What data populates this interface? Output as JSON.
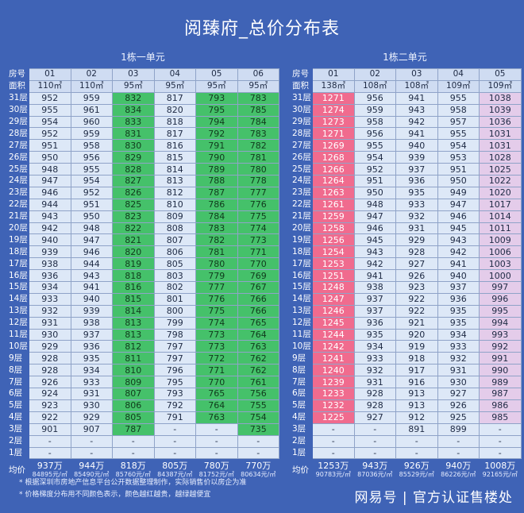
{
  "title": "阅臻府_总价分布表",
  "labels": {
    "room": "房号",
    "area": "面积",
    "avg": "均价"
  },
  "building1": {
    "name": "1栋一单元",
    "units": [
      "01",
      "02",
      "03",
      "04",
      "05",
      "06"
    ],
    "areas": [
      "110㎡",
      "110㎡",
      "95㎡",
      "95㎡",
      "95㎡",
      "95㎡"
    ],
    "col_colors": [
      "l",
      "l",
      "g",
      "l",
      "g",
      "g"
    ],
    "rows": [
      {
        "floor": "31层",
        "vals": [
          "952",
          "959",
          "832",
          "817",
          "793",
          "783"
        ]
      },
      {
        "floor": "30层",
        "vals": [
          "955",
          "961",
          "834",
          "820",
          "795",
          "785"
        ]
      },
      {
        "floor": "29层",
        "vals": [
          "954",
          "960",
          "833",
          "818",
          "794",
          "784"
        ]
      },
      {
        "floor": "28层",
        "vals": [
          "952",
          "959",
          "831",
          "817",
          "792",
          "783"
        ]
      },
      {
        "floor": "27层",
        "vals": [
          "951",
          "958",
          "830",
          "816",
          "791",
          "782"
        ]
      },
      {
        "floor": "26层",
        "vals": [
          "950",
          "956",
          "829",
          "815",
          "790",
          "781"
        ]
      },
      {
        "floor": "25层",
        "vals": [
          "948",
          "955",
          "828",
          "814",
          "789",
          "780"
        ]
      },
      {
        "floor": "24层",
        "vals": [
          "947",
          "954",
          "827",
          "813",
          "788",
          "778"
        ]
      },
      {
        "floor": "23层",
        "vals": [
          "946",
          "952",
          "826",
          "812",
          "787",
          "777"
        ]
      },
      {
        "floor": "22层",
        "vals": [
          "944",
          "951",
          "825",
          "810",
          "786",
          "776"
        ]
      },
      {
        "floor": "21层",
        "vals": [
          "943",
          "950",
          "823",
          "809",
          "784",
          "775"
        ]
      },
      {
        "floor": "20层",
        "vals": [
          "942",
          "948",
          "822",
          "808",
          "783",
          "774"
        ]
      },
      {
        "floor": "19层",
        "vals": [
          "940",
          "947",
          "821",
          "807",
          "782",
          "773"
        ]
      },
      {
        "floor": "18层",
        "vals": [
          "939",
          "946",
          "820",
          "806",
          "781",
          "771"
        ]
      },
      {
        "floor": "17层",
        "vals": [
          "938",
          "944",
          "819",
          "805",
          "780",
          "770"
        ]
      },
      {
        "floor": "16层",
        "vals": [
          "936",
          "943",
          "818",
          "803",
          "779",
          "769"
        ]
      },
      {
        "floor": "15层",
        "vals": [
          "934",
          "941",
          "816",
          "802",
          "777",
          "767"
        ]
      },
      {
        "floor": "14层",
        "vals": [
          "933",
          "940",
          "815",
          "801",
          "776",
          "766"
        ]
      },
      {
        "floor": "13层",
        "vals": [
          "932",
          "939",
          "814",
          "800",
          "775",
          "766"
        ]
      },
      {
        "floor": "12层",
        "vals": [
          "931",
          "938",
          "813",
          "799",
          "774",
          "765"
        ]
      },
      {
        "floor": "11层",
        "vals": [
          "930",
          "937",
          "813",
          "798",
          "773",
          "764"
        ]
      },
      {
        "floor": "10层",
        "vals": [
          "929",
          "936",
          "812",
          "797",
          "773",
          "763"
        ]
      },
      {
        "floor": "9层",
        "vals": [
          "928",
          "935",
          "811",
          "797",
          "772",
          "762"
        ]
      },
      {
        "floor": "8层",
        "vals": [
          "928",
          "934",
          "810",
          "796",
          "771",
          "762"
        ]
      },
      {
        "floor": "7层",
        "vals": [
          "926",
          "933",
          "809",
          "795",
          "770",
          "761"
        ]
      },
      {
        "floor": "6层",
        "vals": [
          "924",
          "931",
          "807",
          "793",
          "765",
          "756"
        ]
      },
      {
        "floor": "5层",
        "vals": [
          "923",
          "930",
          "806",
          "792",
          "764",
          "755"
        ]
      },
      {
        "floor": "4层",
        "vals": [
          "922",
          "929",
          "805",
          "791",
          "763",
          "754"
        ]
      },
      {
        "floor": "3层",
        "vals": [
          "901",
          "907",
          "787",
          "-",
          "-",
          "735"
        ]
      },
      {
        "floor": "2层",
        "vals": [
          "-",
          "-",
          "-",
          "-",
          "-",
          "-"
        ]
      },
      {
        "floor": "1层",
        "vals": [
          "-",
          "-",
          "-",
          "-",
          "-",
          "-"
        ]
      }
    ],
    "avg_total": [
      "937万",
      "944万",
      "818万",
      "805万",
      "780万",
      "770万"
    ],
    "avg_unit": [
      "84895元/㎡",
      "85490元/㎡",
      "85760元/㎡",
      "84387元/㎡",
      "81752元/㎡",
      "80634元/㎡"
    ]
  },
  "building2": {
    "name": "1栋二单元",
    "units": [
      "01",
      "02",
      "03",
      "04",
      "05"
    ],
    "areas": [
      "138㎡",
      "108㎡",
      "108㎡",
      "109㎡",
      "109㎡"
    ],
    "col_colors": [
      "r",
      "l",
      "l",
      "l",
      "p"
    ],
    "rows": [
      {
        "floor": "31层",
        "vals": [
          "1271",
          "956",
          "941",
          "955",
          "1038"
        ]
      },
      {
        "floor": "30层",
        "vals": [
          "1274",
          "959",
          "943",
          "958",
          "1039"
        ]
      },
      {
        "floor": "29层",
        "vals": [
          "1273",
          "958",
          "942",
          "957",
          "1036"
        ]
      },
      {
        "floor": "28层",
        "vals": [
          "1271",
          "956",
          "941",
          "955",
          "1031"
        ]
      },
      {
        "floor": "27层",
        "vals": [
          "1269",
          "955",
          "940",
          "954",
          "1031"
        ]
      },
      {
        "floor": "26层",
        "vals": [
          "1268",
          "954",
          "939",
          "953",
          "1028"
        ]
      },
      {
        "floor": "25层",
        "vals": [
          "1266",
          "952",
          "937",
          "951",
          "1025"
        ]
      },
      {
        "floor": "24层",
        "vals": [
          "1264",
          "951",
          "936",
          "950",
          "1022"
        ]
      },
      {
        "floor": "23层",
        "vals": [
          "1263",
          "950",
          "935",
          "949",
          "1020"
        ]
      },
      {
        "floor": "22层",
        "vals": [
          "1261",
          "948",
          "933",
          "947",
          "1017"
        ]
      },
      {
        "floor": "21层",
        "vals": [
          "1259",
          "947",
          "932",
          "946",
          "1014"
        ]
      },
      {
        "floor": "20层",
        "vals": [
          "1258",
          "946",
          "931",
          "945",
          "1011"
        ]
      },
      {
        "floor": "19层",
        "vals": [
          "1256",
          "945",
          "929",
          "943",
          "1009"
        ]
      },
      {
        "floor": "18层",
        "vals": [
          "1254",
          "943",
          "928",
          "942",
          "1006"
        ]
      },
      {
        "floor": "17层",
        "vals": [
          "1253",
          "942",
          "927",
          "941",
          "1003"
        ]
      },
      {
        "floor": "16层",
        "vals": [
          "1251",
          "941",
          "926",
          "940",
          "1000"
        ]
      },
      {
        "floor": "15层",
        "vals": [
          "1248",
          "938",
          "923",
          "937",
          "997"
        ]
      },
      {
        "floor": "14层",
        "vals": [
          "1247",
          "937",
          "922",
          "936",
          "996"
        ]
      },
      {
        "floor": "13层",
        "vals": [
          "1246",
          "937",
          "922",
          "935",
          "995"
        ]
      },
      {
        "floor": "12层",
        "vals": [
          "1245",
          "936",
          "921",
          "935",
          "994"
        ]
      },
      {
        "floor": "11层",
        "vals": [
          "1244",
          "935",
          "920",
          "934",
          "993"
        ]
      },
      {
        "floor": "10层",
        "vals": [
          "1242",
          "934",
          "919",
          "933",
          "992"
        ]
      },
      {
        "floor": "9层",
        "vals": [
          "1241",
          "933",
          "918",
          "932",
          "991"
        ]
      },
      {
        "floor": "8层",
        "vals": [
          "1240",
          "932",
          "917",
          "931",
          "990"
        ]
      },
      {
        "floor": "7层",
        "vals": [
          "1239",
          "931",
          "916",
          "930",
          "989"
        ]
      },
      {
        "floor": "6层",
        "vals": [
          "1233",
          "928",
          "913",
          "927",
          "987"
        ]
      },
      {
        "floor": "5层",
        "vals": [
          "1232",
          "928",
          "913",
          "926",
          "986"
        ]
      },
      {
        "floor": "4层",
        "vals": [
          "1225",
          "927",
          "912",
          "925",
          "985"
        ]
      },
      {
        "floor": "3层",
        "vals": [
          "-",
          "-",
          "891",
          "899",
          "-"
        ]
      },
      {
        "floor": "2层",
        "vals": [
          "-",
          "-",
          "-",
          "-",
          "-"
        ]
      },
      {
        "floor": "1层",
        "vals": [
          "-",
          "-",
          "-",
          "-",
          "-"
        ]
      }
    ],
    "avg_total": [
      "1253万",
      "943万",
      "926万",
      "940万",
      "1008万"
    ],
    "avg_unit": [
      "90783元/㎡",
      "87036元/㎡",
      "85529元/㎡",
      "86226元/㎡",
      "92165元/㎡"
    ]
  },
  "notes": [
    "* 根据深圳市房地产信息平台公开数据整理制作，实际销售价以房企为准",
    "* 价格梯度分布用不同颜色表示，颜色越红越贵，越绿越便宜"
  ],
  "brand": "网易号 | 官方认证售楼处",
  "colors": {
    "background": "#3f63b6",
    "light": "#dde8f7",
    "green": "#45c16a",
    "red": "#f06b8e",
    "pink": "#e4ccea"
  }
}
